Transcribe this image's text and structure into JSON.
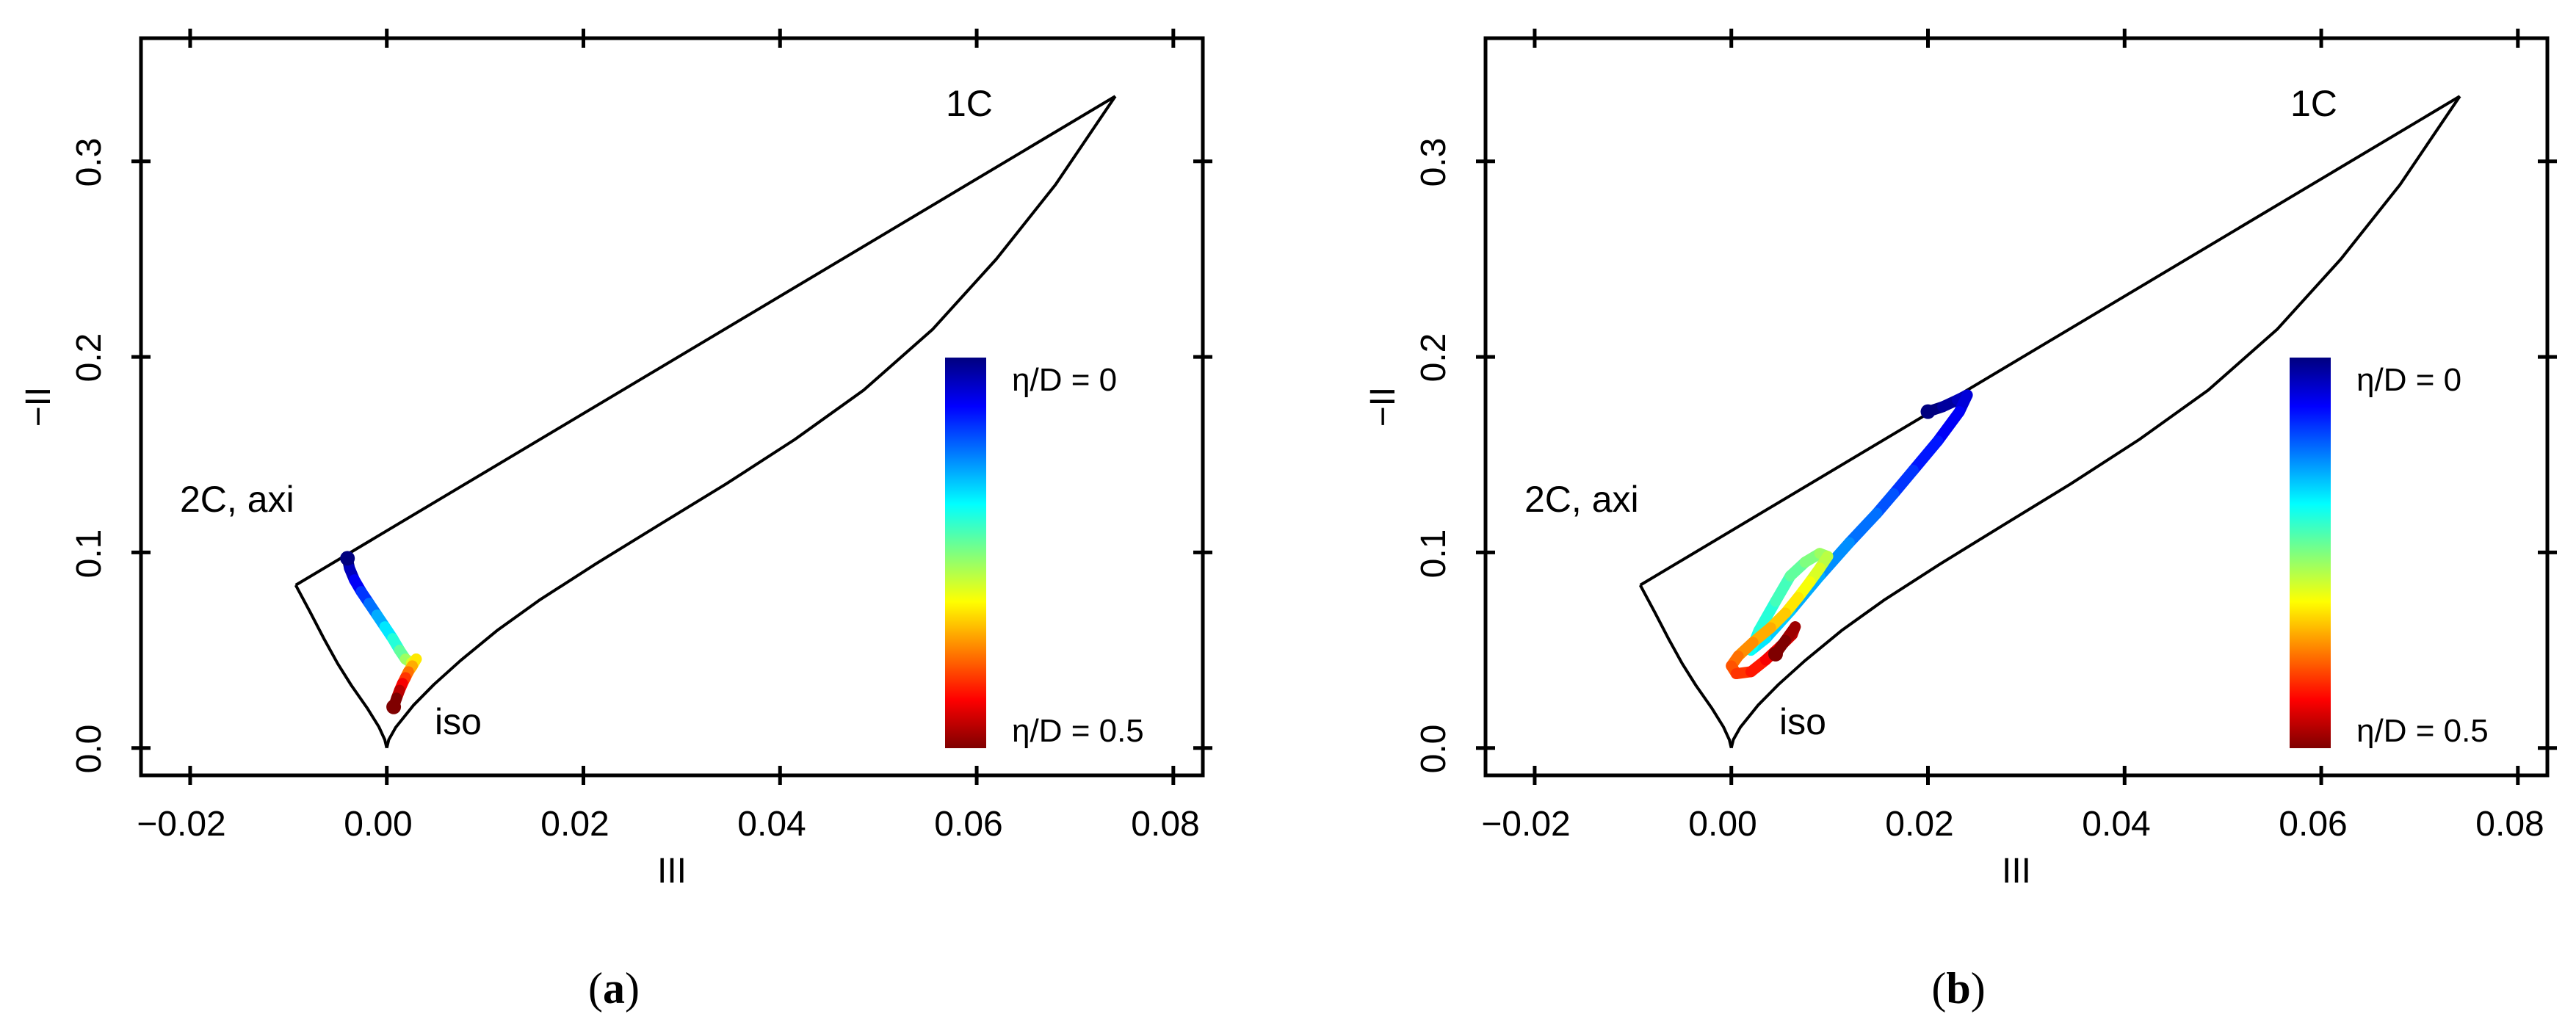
{
  "chart_data": [
    {
      "type": "line",
      "panel_label": "a",
      "xlabel": "III",
      "ylabel": "−II",
      "xlim": [
        -0.025,
        0.083
      ],
      "ylim": [
        -0.014,
        0.363
      ],
      "xticks": [
        "−0.02",
        "0.00",
        "0.02",
        "0.04",
        "0.06",
        "0.08"
      ],
      "xtick_values": [
        -0.02,
        0.0,
        0.02,
        0.04,
        0.06,
        0.08
      ],
      "yticks": [
        "0.0",
        "0.1",
        "0.2",
        "0.3"
      ],
      "ytick_values": [
        0.0,
        0.1,
        0.2,
        0.3
      ],
      "grid": false,
      "annotations": [
        {
          "text": "1C",
          "x": 0.06,
          "y": 0.328
        },
        {
          "text": "2C, axi",
          "x": -0.02,
          "y": 0.125
        },
        {
          "text": "iso",
          "x": 0.006,
          "y": 0.011
        }
      ],
      "colorbar": {
        "top_label": "η/D = 0",
        "bottom_label": "η/D = 0.5",
        "range": [
          0,
          0.5
        ],
        "colormap": [
          "#00007f",
          "#0000ff",
          "#007fff",
          "#00ffff",
          "#7fff7f",
          "#ffff00",
          "#ff7f00",
          "#ff0000",
          "#7f0000"
        ],
        "placement": "right"
      },
      "series": [
        {
          "name": "boundary: 2C to 1C",
          "color": "#000000",
          "points": [
            [
              -0.00926,
              0.0833
            ],
            [
              0.0741,
              0.3333
            ]
          ]
        },
        {
          "name": "boundary: iso to 1C",
          "color": "#000000",
          "points": [
            [
              0.0,
              0.0
            ],
            [
              0.0002,
              0.0042
            ],
            [
              0.0009,
              0.0105
            ],
            [
              0.0027,
              0.0218
            ],
            [
              0.0048,
              0.0325
            ],
            [
              0.0075,
              0.0447
            ],
            [
              0.0112,
              0.06
            ],
            [
              0.0155,
              0.0755
            ],
            [
              0.0212,
              0.094
            ],
            [
              0.0278,
              0.1144
            ],
            [
              0.0345,
              0.135
            ],
            [
              0.0415,
              0.1578
            ],
            [
              0.0485,
              0.183
            ],
            [
              0.0555,
              0.214
            ],
            [
              0.062,
              0.25
            ],
            [
              0.068,
              0.288
            ],
            [
              0.0741,
              0.3333
            ]
          ]
        },
        {
          "name": "boundary: iso to 2C",
          "color": "#000000",
          "points": [
            [
              0.0,
              0.0
            ],
            [
              -0.0002,
              0.0042
            ],
            [
              -0.0008,
              0.0108
            ],
            [
              -0.002,
              0.0205
            ],
            [
              -0.0036,
              0.032
            ],
            [
              -0.005,
              0.0432
            ],
            [
              -0.0064,
              0.056
            ],
            [
              -0.0078,
              0.0695
            ],
            [
              -0.00926,
              0.0833
            ]
          ]
        },
        {
          "name": "data trajectory",
          "colormap_by": "eta/D",
          "eta_range": [
            0,
            0.5
          ],
          "points": [
            [
              -0.004,
              0.097
            ],
            [
              -0.0038,
              0.092
            ],
            [
              -0.0033,
              0.086
            ],
            [
              -0.0026,
              0.08
            ],
            [
              -0.0018,
              0.074
            ],
            [
              -0.001,
              0.068
            ],
            [
              -0.0002,
              0.062
            ],
            [
              0.0006,
              0.056
            ],
            [
              0.0013,
              0.05
            ],
            [
              0.0019,
              0.0455
            ],
            [
              0.0025,
              0.0435
            ],
            [
              0.003,
              0.0455
            ],
            [
              0.0026,
              0.042
            ],
            [
              0.0022,
              0.039
            ],
            [
              0.0019,
              0.036
            ],
            [
              0.0016,
              0.033
            ],
            [
              0.0013,
              0.0295
            ],
            [
              0.001,
              0.0255
            ],
            [
              0.0007,
              0.021
            ]
          ]
        }
      ]
    },
    {
      "type": "line",
      "panel_label": "b",
      "xlabel": "III",
      "ylabel": "−II",
      "xlim": [
        -0.025,
        0.083
      ],
      "ylim": [
        -0.014,
        0.363
      ],
      "xticks": [
        "−0.02",
        "0.00",
        "0.02",
        "0.04",
        "0.06",
        "0.08"
      ],
      "xtick_values": [
        -0.02,
        0.0,
        0.02,
        0.04,
        0.06,
        0.08
      ],
      "yticks": [
        "0.0",
        "0.1",
        "0.2",
        "0.3"
      ],
      "ytick_values": [
        0.0,
        0.1,
        0.2,
        0.3
      ],
      "grid": false,
      "annotations": [
        {
          "text": "1C",
          "x": 0.06,
          "y": 0.328
        },
        {
          "text": "2C, axi",
          "x": -0.02,
          "y": 0.125
        },
        {
          "text": "iso",
          "x": 0.006,
          "y": 0.011
        }
      ],
      "colorbar": {
        "top_label": "η/D = 0",
        "bottom_label": "η/D = 0.5",
        "range": [
          0,
          0.5
        ],
        "colormap": [
          "#00007f",
          "#0000ff",
          "#007fff",
          "#00ffff",
          "#7fff7f",
          "#ffff00",
          "#ff7f00",
          "#ff0000",
          "#7f0000"
        ],
        "placement": "right"
      },
      "series": [
        {
          "name": "boundary: 2C to 1C",
          "color": "#000000",
          "points": [
            [
              -0.00926,
              0.0833
            ],
            [
              0.0741,
              0.3333
            ]
          ]
        },
        {
          "name": "boundary: iso to 1C",
          "color": "#000000",
          "points": [
            [
              0.0,
              0.0
            ],
            [
              0.0002,
              0.0042
            ],
            [
              0.0009,
              0.0105
            ],
            [
              0.0027,
              0.0218
            ],
            [
              0.0048,
              0.0325
            ],
            [
              0.0075,
              0.0447
            ],
            [
              0.0112,
              0.06
            ],
            [
              0.0155,
              0.0755
            ],
            [
              0.0212,
              0.094
            ],
            [
              0.0278,
              0.1144
            ],
            [
              0.0345,
              0.135
            ],
            [
              0.0415,
              0.1578
            ],
            [
              0.0485,
              0.183
            ],
            [
              0.0555,
              0.214
            ],
            [
              0.062,
              0.25
            ],
            [
              0.068,
              0.288
            ],
            [
              0.0741,
              0.3333
            ]
          ]
        },
        {
          "name": "boundary: iso to 2C",
          "color": "#000000",
          "points": [
            [
              0.0,
              0.0
            ],
            [
              -0.0002,
              0.0042
            ],
            [
              -0.0008,
              0.0108
            ],
            [
              -0.002,
              0.0205
            ],
            [
              -0.0036,
              0.032
            ],
            [
              -0.005,
              0.0432
            ],
            [
              -0.0064,
              0.056
            ],
            [
              -0.0078,
              0.0695
            ],
            [
              -0.00926,
              0.0833
            ]
          ]
        },
        {
          "name": "data trajectory",
          "colormap_by": "eta/D",
          "eta_range": [
            0,
            0.5
          ],
          "points": [
            [
              0.02,
              0.172
            ],
            [
              0.0215,
              0.1745
            ],
            [
              0.023,
              0.178
            ],
            [
              0.024,
              0.1805
            ],
            [
              0.0232,
              0.172
            ],
            [
              0.021,
              0.157
            ],
            [
              0.0185,
              0.142
            ],
            [
              0.0165,
              0.13
            ],
            [
              0.0148,
              0.12
            ],
            [
              0.012,
              0.105
            ],
            [
              0.009,
              0.088
            ],
            [
              0.006,
              0.07
            ],
            [
              0.0035,
              0.056
            ],
            [
              0.002,
              0.05
            ],
            [
              0.0028,
              0.06
            ],
            [
              0.0045,
              0.075
            ],
            [
              0.006,
              0.088
            ],
            [
              0.0075,
              0.095
            ],
            [
              0.009,
              0.0995
            ],
            [
              0.0098,
              0.098
            ],
            [
              0.009,
              0.092
            ],
            [
              0.008,
              0.085
            ],
            [
              0.0068,
              0.077
            ],
            [
              0.0055,
              0.069
            ],
            [
              0.004,
              0.0615
            ],
            [
              0.0022,
              0.054
            ],
            [
              0.0007,
              0.047
            ],
            [
              0.0,
              0.042
            ],
            [
              0.0005,
              0.038
            ],
            [
              0.002,
              0.039
            ],
            [
              0.0035,
              0.045
            ],
            [
              0.005,
              0.052
            ],
            [
              0.0062,
              0.058
            ],
            [
              0.0065,
              0.062
            ],
            [
              0.0055,
              0.055
            ],
            [
              0.0045,
              0.048
            ]
          ]
        }
      ]
    }
  ]
}
